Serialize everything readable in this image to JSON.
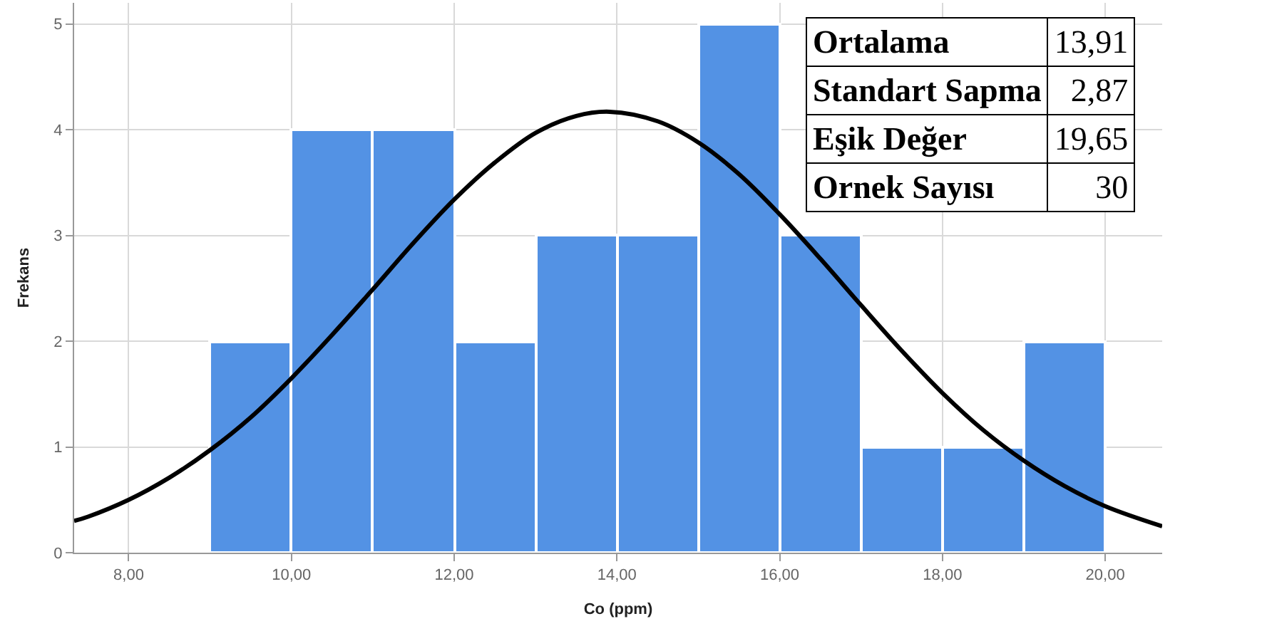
{
  "chart_data": {
    "type": "histogram",
    "xlabel": "Co (ppm)",
    "ylabel": "Frekans",
    "bins": [
      9,
      10,
      11,
      12,
      13,
      14,
      15,
      16,
      17,
      18,
      19,
      20
    ],
    "values": [
      2,
      4,
      4,
      2,
      3,
      3,
      5,
      3,
      1,
      1,
      2
    ],
    "color": "#5392e4",
    "series": [
      {
        "type": "line",
        "color": "#000000",
        "x": [
          7.33,
          7.5,
          8,
          8.5,
          9,
          9.5,
          10,
          10.5,
          11,
          11.5,
          12,
          12.5,
          13,
          13.5,
          13.91,
          14.5,
          15,
          15.5,
          16,
          16.5,
          17,
          17.5,
          18,
          18.5,
          19,
          19.5,
          20,
          20.7
        ],
        "values": [
          0.3,
          0.34,
          0.5,
          0.71,
          0.97,
          1.28,
          1.65,
          2.06,
          2.49,
          2.93,
          3.34,
          3.69,
          3.97,
          4.13,
          4.17,
          4.08,
          3.88,
          3.58,
          3.2,
          2.78,
          2.34,
          1.91,
          1.51,
          1.16,
          0.87,
          0.63,
          0.44,
          0.25
        ]
      }
    ],
    "xlim": [
      7.33,
      20.7
    ],
    "xticks": [
      {
        "value": 8,
        "label": "8,00"
      },
      {
        "value": 10,
        "label": "10,00"
      },
      {
        "value": 12,
        "label": "12,00"
      },
      {
        "value": 14,
        "label": "14,00"
      },
      {
        "value": 16,
        "label": "16,00"
      },
      {
        "value": 18,
        "label": "18,00"
      },
      {
        "value": 20,
        "label": "20,00"
      }
    ],
    "ylim": [
      0,
      5.2
    ],
    "yticks": [
      0,
      1,
      2,
      3,
      4,
      5
    ],
    "grid": true,
    "annotations": [
      "Ortalama",
      "13,91",
      "Standart Sapma",
      "2,87",
      "Eşik Değer",
      "19,65",
      "Ornek Sayısı",
      "30"
    ]
  }
}
